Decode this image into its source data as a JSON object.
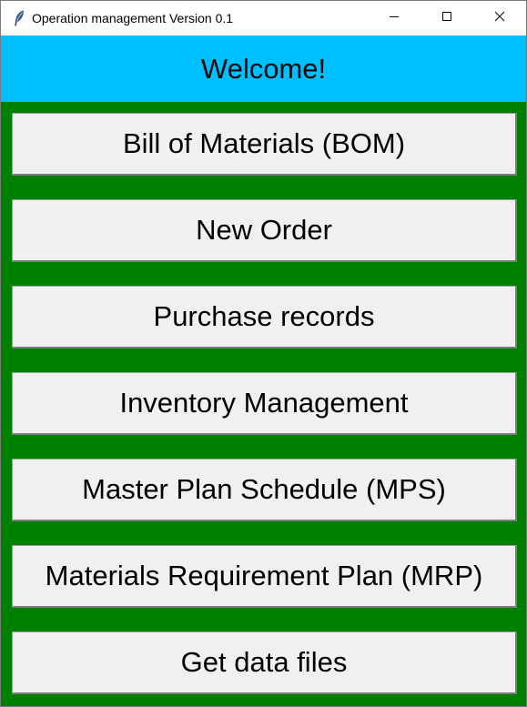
{
  "window": {
    "title": "Operation management Version 0.1",
    "app_icon": "feather-icon",
    "controls": [
      "minimize-icon",
      "maximize-icon",
      "close-icon"
    ]
  },
  "header": {
    "welcome_text": "Welcome!",
    "background": "#00bfff"
  },
  "menu": {
    "background": "#008000",
    "buttons": [
      {
        "label": "Bill of Materials (BOM)"
      },
      {
        "label": "New Order"
      },
      {
        "label": "Purchase records"
      },
      {
        "label": "Inventory Management"
      },
      {
        "label": "Master Plan Schedule (MPS)"
      },
      {
        "label": "Materials Requirement Plan (MRP)"
      },
      {
        "label": "Get data files"
      }
    ]
  }
}
